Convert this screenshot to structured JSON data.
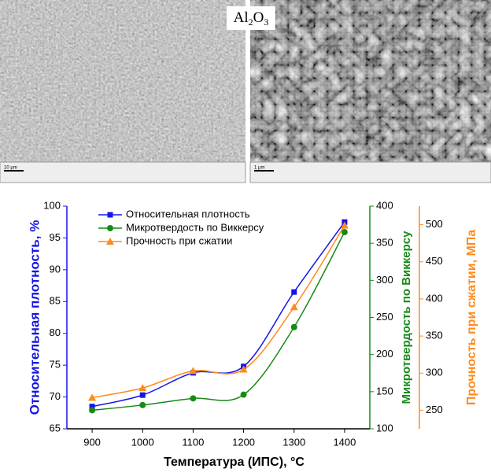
{
  "images": {
    "label": [
      "Al",
      "2",
      "O",
      "3"
    ],
    "scale_left": "10 µm",
    "scale_right": "1 µm"
  },
  "chart_data": {
    "type": "line",
    "x_label": "Температура (ИПС), °C",
    "x": [
      900,
      1000,
      1100,
      1200,
      1300,
      1400
    ],
    "xlim": [
      850,
      1450
    ],
    "xticks": [
      900,
      1000,
      1100,
      1200,
      1300,
      1400
    ],
    "ylim": [
      65,
      100
    ],
    "yticks": [
      65,
      70,
      75,
      80,
      85,
      90,
      95,
      100
    ],
    "y_label": "Относительная плотность, %",
    "y_color": "#1515e6",
    "y2lim": [
      100,
      400
    ],
    "y2ticks": [
      100,
      150,
      200,
      250,
      300,
      350,
      400
    ],
    "y2_label": "Микротвердость по Виккерсу",
    "y2_color": "#178a17",
    "y3lim": [
      225,
      525
    ],
    "y3ticks": [
      250,
      300,
      350,
      400,
      450,
      500
    ],
    "y3_label": "Прочность при сжатии, МПа",
    "y3_color": "#ff8a1c",
    "series": [
      {
        "name": "Относительная плотность",
        "color": "#1515e6",
        "marker": "square",
        "axis": "y",
        "values": [
          68.5,
          70.3,
          73.8,
          74.8,
          86.5,
          97.5
        ]
      },
      {
        "name": "Микротвердость по Виккерсу",
        "color": "#178a17",
        "marker": "circle",
        "axis": "y2",
        "values": [
          125,
          132,
          141,
          146,
          237,
          365
        ]
      },
      {
        "name": "Прочность при сжатии",
        "color": "#ff8a1c",
        "marker": "triangle",
        "axis": "y3",
        "values": [
          267,
          280,
          303,
          305,
          389,
          499
        ]
      }
    ]
  }
}
